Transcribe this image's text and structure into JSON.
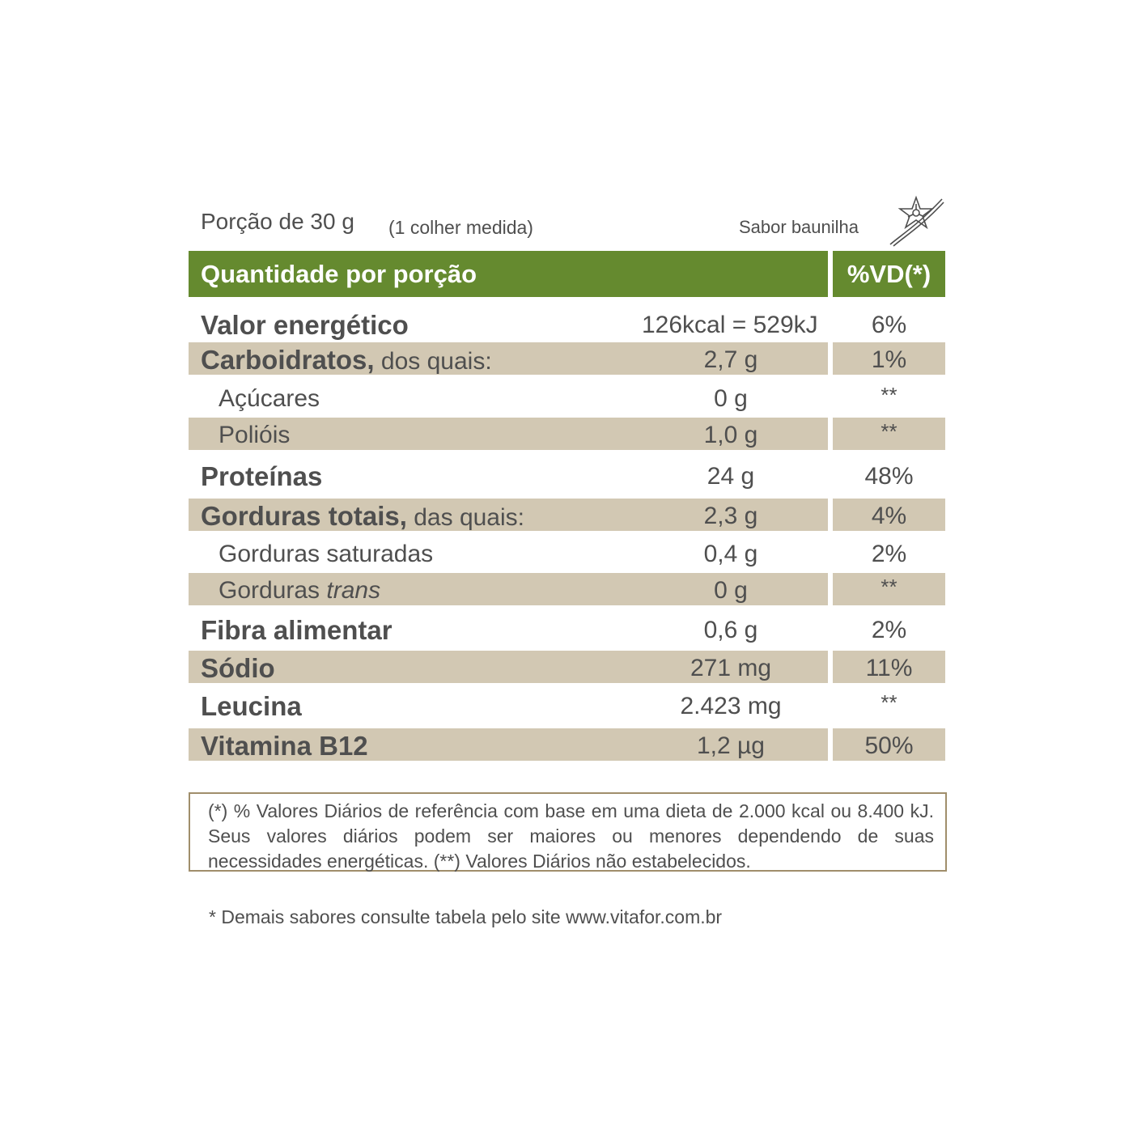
{
  "portion": {
    "label": "Porção de 30 g",
    "detail": "(1 colher medida)",
    "flavor": "Sabor baunilha"
  },
  "header": {
    "quantity": "Quantidade por porção",
    "vd": "%VD(*)"
  },
  "rows": [
    {
      "name": "Valor energético",
      "suffix": "",
      "amount": "126kcal = 529kJ",
      "vd": "6%"
    },
    {
      "name": "Carboidratos,",
      "suffix": "dos quais:",
      "amount": "2,7 g",
      "vd": "1%"
    },
    {
      "name": "Açúcares",
      "suffix": "",
      "amount": "0 g",
      "vd": "**"
    },
    {
      "name": "Polióis",
      "suffix": "",
      "amount": "1,0 g",
      "vd": "**"
    },
    {
      "name": "Proteínas",
      "suffix": "",
      "amount": "24 g",
      "vd": "48%"
    },
    {
      "name": "Gorduras totais,",
      "suffix": "das quais:",
      "amount": "2,3 g",
      "vd": "4%"
    },
    {
      "name": "Gorduras saturadas",
      "suffix": "",
      "amount": "0,4 g",
      "vd": "2%"
    },
    {
      "name": "Gorduras",
      "suffix": "trans",
      "amount": "0 g",
      "vd": "**"
    },
    {
      "name": "Fibra alimentar",
      "suffix": "",
      "amount": "0,6 g",
      "vd": "2%"
    },
    {
      "name": "Sódio",
      "suffix": "",
      "amount": "271 mg",
      "vd": "11%"
    },
    {
      "name": "Leucina",
      "suffix": "",
      "amount": "2.423 mg",
      "vd": "**"
    },
    {
      "name": "Vitamina B12",
      "suffix": "",
      "amount": "1,2 µg",
      "vd": "50%"
    }
  ],
  "note": "(*) % Valores Diários de referência com base em uma dieta de 2.000 kcal ou 8.400 kJ. Seus valores diários podem ser maiores ou menores dependendo de suas necessidades energéticas. (**) Valores Diários não estabelecidos.",
  "footer": "* Demais sabores consulte tabela pelo site www.vitafor.com.br",
  "colors": {
    "header_green": "#658a2f",
    "row_tan": "#d2c8b3",
    "text": "#4f4f4f",
    "border": "#a08e6b"
  },
  "icons": [
    "vanilla-flower-icon"
  ]
}
